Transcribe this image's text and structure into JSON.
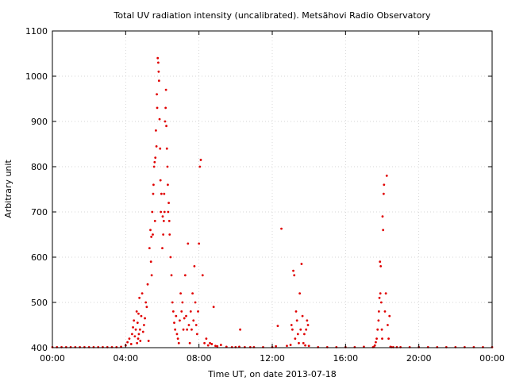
{
  "chart_data": {
    "type": "scatter",
    "title": "Total UV radiation intensity (uncalibrated). Metsähovi Radio Observatory",
    "xlabel": "Time UT, on date 2013-07-18",
    "ylabel": "Arbitrary unit",
    "xlim": [
      0,
      24
    ],
    "ylim": [
      400,
      1100
    ],
    "grid": true,
    "marker_color": "#e00000",
    "x_ticks": [
      {
        "value": 0,
        "label": "00:00"
      },
      {
        "value": 4,
        "label": "04:00"
      },
      {
        "value": 8,
        "label": "08:00"
      },
      {
        "value": 12,
        "label": "12:00"
      },
      {
        "value": 16,
        "label": "16:00"
      },
      {
        "value": 20,
        "label": "20:00"
      },
      {
        "value": 24,
        "label": "00:00"
      }
    ],
    "y_ticks": [
      {
        "value": 400,
        "label": "400"
      },
      {
        "value": 500,
        "label": "500"
      },
      {
        "value": 600,
        "label": "600"
      },
      {
        "value": 700,
        "label": "700"
      },
      {
        "value": 800,
        "label": "800"
      },
      {
        "value": 900,
        "label": "900"
      },
      {
        "value": 1000,
        "label": "1000"
      },
      {
        "value": 1100,
        "label": "1100"
      }
    ],
    "series": [
      {
        "x": [
          0.0,
          0.25,
          0.5,
          0.75,
          1.0,
          1.25,
          1.5,
          1.75,
          2.0,
          2.25,
          2.5,
          2.75,
          3.0,
          3.25,
          3.5,
          3.75,
          4.0,
          4.1,
          4.2,
          4.3,
          4.35,
          4.4,
          4.45,
          4.5,
          4.55,
          4.6,
          4.62,
          4.65,
          4.68,
          4.7,
          4.72,
          4.75,
          4.78,
          4.8,
          4.85,
          4.9,
          4.95,
          5.0,
          5.05,
          5.1,
          5.15,
          5.2,
          5.25,
          5.3,
          5.35,
          5.38,
          5.4,
          5.42,
          5.45,
          5.48,
          5.5,
          5.52,
          5.55,
          5.58,
          5.6,
          5.62,
          5.65,
          5.68,
          5.7,
          5.72,
          5.75,
          5.78,
          5.8,
          5.82,
          5.85,
          5.88,
          5.9,
          5.92,
          5.95,
          6.0,
          6.02,
          6.05,
          6.08,
          6.1,
          6.12,
          6.15,
          6.18,
          6.2,
          6.22,
          6.25,
          6.28,
          6.3,
          6.32,
          6.35,
          6.38,
          6.4,
          6.45,
          6.5,
          6.55,
          6.6,
          6.65,
          6.7,
          6.75,
          6.8,
          6.85,
          6.9,
          6.95,
          7.0,
          7.05,
          7.1,
          7.15,
          7.2,
          7.25,
          7.3,
          7.35,
          7.4,
          7.45,
          7.5,
          7.55,
          7.6,
          7.65,
          7.7,
          7.75,
          7.8,
          7.85,
          7.9,
          7.95,
          8.0,
          8.05,
          8.1,
          8.2,
          8.3,
          8.4,
          8.5,
          8.6,
          8.7,
          8.8,
          8.9,
          9.0,
          9.2,
          9.5,
          9.8,
          10.0,
          10.2,
          10.25,
          10.5,
          10.8,
          11.0,
          11.5,
          12.0,
          12.2,
          12.3,
          12.5,
          12.8,
          13.0,
          13.05,
          13.1,
          13.15,
          13.2,
          13.25,
          13.3,
          13.35,
          13.4,
          13.45,
          13.5,
          13.55,
          13.6,
          13.65,
          13.7,
          13.75,
          13.8,
          13.85,
          13.9,
          13.95,
          14.0,
          14.5,
          15.0,
          15.5,
          16.0,
          16.5,
          17.0,
          17.5,
          17.55,
          17.6,
          17.65,
          17.7,
          17.75,
          17.8,
          17.82,
          17.85,
          17.88,
          17.9,
          17.92,
          17.95,
          17.98,
          18.0,
          18.02,
          18.05,
          18.08,
          18.1,
          18.15,
          18.2,
          18.25,
          18.3,
          18.35,
          18.4,
          18.45,
          18.5,
          18.6,
          18.8,
          19.0,
          19.5,
          20.0,
          20.5,
          21.0,
          21.5,
          22.0,
          22.5,
          23.0,
          23.5,
          24.0
        ],
        "y": [
          401,
          401,
          401,
          401,
          401,
          401,
          401,
          401,
          401,
          401,
          401,
          401,
          401,
          401,
          401,
          402,
          405,
          412,
          420,
          408,
          430,
          445,
          460,
          425,
          440,
          480,
          410,
          455,
          420,
          475,
          430,
          510,
          440,
          415,
          470,
          520,
          435,
          450,
          465,
          500,
          490,
          540,
          415,
          620,
          660,
          590,
          645,
          560,
          700,
          650,
          740,
          760,
          800,
          810,
          680,
          820,
          880,
          845,
          960,
          930,
          1040,
          1030,
          1010,
          990,
          905,
          840,
          770,
          700,
          740,
          620,
          690,
          650,
          680,
          740,
          700,
          900,
          930,
          970,
          890,
          840,
          800,
          760,
          700,
          720,
          680,
          650,
          600,
          560,
          500,
          480,
          455,
          440,
          470,
          430,
          420,
          410,
          460,
          520,
          480,
          500,
          440,
          465,
          560,
          470,
          440,
          630,
          450,
          410,
          480,
          440,
          520,
          460,
          580,
          500,
          450,
          430,
          480,
          630,
          800,
          815,
          560,
          410,
          420,
          405,
          410,
          408,
          490,
          404,
          403,
          406,
          402,
          401,
          401,
          402,
          440,
          401,
          401,
          401,
          401,
          401,
          403,
          448,
          663,
          404,
          406,
          450,
          440,
          570,
          560,
          420,
          480,
          460,
          430,
          410,
          520,
          440,
          585,
          470,
          410,
          430,
          405,
          440,
          460,
          450,
          404,
          401,
          401,
          401,
          401,
          401,
          402,
          401,
          402,
          405,
          412,
          420,
          440,
          460,
          480,
          510,
          590,
          520,
          580,
          500,
          440,
          420,
          690,
          660,
          740,
          760,
          480,
          520,
          780,
          450,
          420,
          470,
          402,
          401,
          401,
          401,
          401,
          401,
          401,
          401,
          401,
          401,
          401,
          401,
          401,
          401,
          401
        ]
      }
    ]
  }
}
